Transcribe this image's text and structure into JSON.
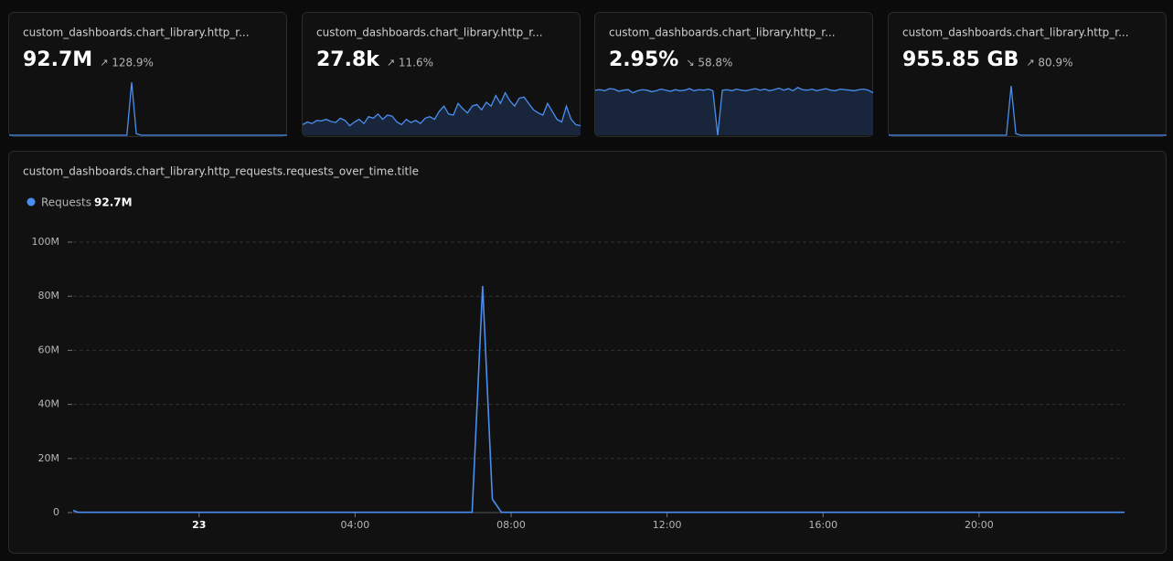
{
  "cards": [
    {
      "title": "custom_dashboards.chart_library.http_r...",
      "value": "92.7M",
      "change": "128.9%",
      "trend": "up",
      "area": false,
      "ylim": [
        0,
        100
      ],
      "sparkline": [
        0,
        0,
        0,
        0,
        0,
        0,
        0,
        0,
        0,
        0,
        0,
        0,
        0,
        0,
        0,
        0,
        0,
        0,
        0,
        0,
        0,
        0,
        0,
        0,
        0,
        0,
        100,
        3,
        0,
        0,
        0,
        0,
        0,
        0,
        0,
        0,
        0,
        0,
        0,
        0,
        0,
        0,
        0,
        0,
        0,
        0,
        0,
        0,
        0,
        0,
        0,
        0,
        0,
        0,
        0,
        0,
        0,
        0,
        0,
        0
      ]
    },
    {
      "title": "custom_dashboards.chart_library.http_r...",
      "value": "27.8k",
      "change": "11.6%",
      "trend": "up",
      "area": true,
      "ylim": [
        0,
        100
      ],
      "sparkline": [
        20,
        25,
        22,
        28,
        27,
        30,
        26,
        24,
        32,
        28,
        18,
        25,
        30,
        22,
        35,
        32,
        40,
        30,
        38,
        36,
        25,
        20,
        30,
        24,
        28,
        22,
        32,
        35,
        30,
        45,
        55,
        40,
        38,
        60,
        50,
        42,
        55,
        58,
        48,
        62,
        55,
        75,
        60,
        80,
        65,
        55,
        70,
        72,
        60,
        48,
        42,
        38,
        60,
        45,
        30,
        25,
        55,
        30,
        20,
        18
      ]
    },
    {
      "title": "custom_dashboards.chart_library.http_r...",
      "value": "2.95%",
      "change": "58.8%",
      "trend": "down",
      "area": true,
      "ylim": [
        0,
        100
      ],
      "sparkline": [
        85,
        86,
        84,
        88,
        87,
        83,
        85,
        86,
        80,
        84,
        86,
        85,
        82,
        84,
        87,
        85,
        83,
        86,
        84,
        85,
        88,
        84,
        86,
        85,
        87,
        84,
        0,
        85,
        86,
        84,
        87,
        85,
        84,
        86,
        88,
        85,
        87,
        84,
        86,
        89,
        85,
        88,
        84,
        90,
        86,
        85,
        87,
        84,
        86,
        88,
        85,
        84,
        87,
        86,
        85,
        84,
        86,
        87,
        85,
        80
      ]
    },
    {
      "title": "custom_dashboards.chart_library.http_r...",
      "value": "955.85 GB",
      "change": "80.9%",
      "trend": "up",
      "area": false,
      "ylim": [
        0,
        100
      ],
      "sparkline": [
        0,
        0,
        0,
        0,
        0,
        0,
        0,
        0,
        0,
        0,
        0,
        0,
        0,
        0,
        0,
        0,
        0,
        0,
        0,
        0,
        0,
        0,
        0,
        0,
        0,
        0,
        93,
        3,
        0,
        0,
        0,
        0,
        0,
        0,
        0,
        0,
        0,
        0,
        0,
        0,
        0,
        0,
        0,
        0,
        0,
        0,
        0,
        0,
        0,
        0,
        0,
        0,
        0,
        0,
        0,
        0,
        0,
        0,
        0,
        0
      ]
    }
  ],
  "chart_data": {
    "type": "line",
    "title": "custom_dashboards.chart_library.http_requests.requests_over_time.title",
    "legend_value": "92.7M",
    "x": [
      -3.23,
      -3.1,
      7.0,
      7.27,
      7.52,
      7.75,
      23.73
    ],
    "series": [
      {
        "name": "Requests",
        "color": "#4a8ff0",
        "values": [
          800000,
          100000,
          100000,
          83800000,
          5000000,
          100000,
          100000
        ]
      }
    ],
    "xlim": [
      -3.23,
      23.73
    ],
    "xticks": [
      {
        "value": 0,
        "label": "23"
      },
      {
        "value": 4,
        "label": "04:00"
      },
      {
        "value": 8,
        "label": "08:00"
      },
      {
        "value": 12,
        "label": "12:00"
      },
      {
        "value": 16,
        "label": "16:00"
      },
      {
        "value": 20,
        "label": "20:00"
      }
    ],
    "ylim": [
      0,
      100000000
    ],
    "yticks": [
      0,
      {
        "value": 20000000,
        "label": "20M"
      },
      {
        "value": 40000000,
        "label": "40M"
      },
      {
        "value": 60000000,
        "label": "60M"
      },
      {
        "value": 80000000,
        "label": "80M"
      },
      {
        "value": 100000000,
        "label": "100M"
      }
    ],
    "grid": true
  }
}
